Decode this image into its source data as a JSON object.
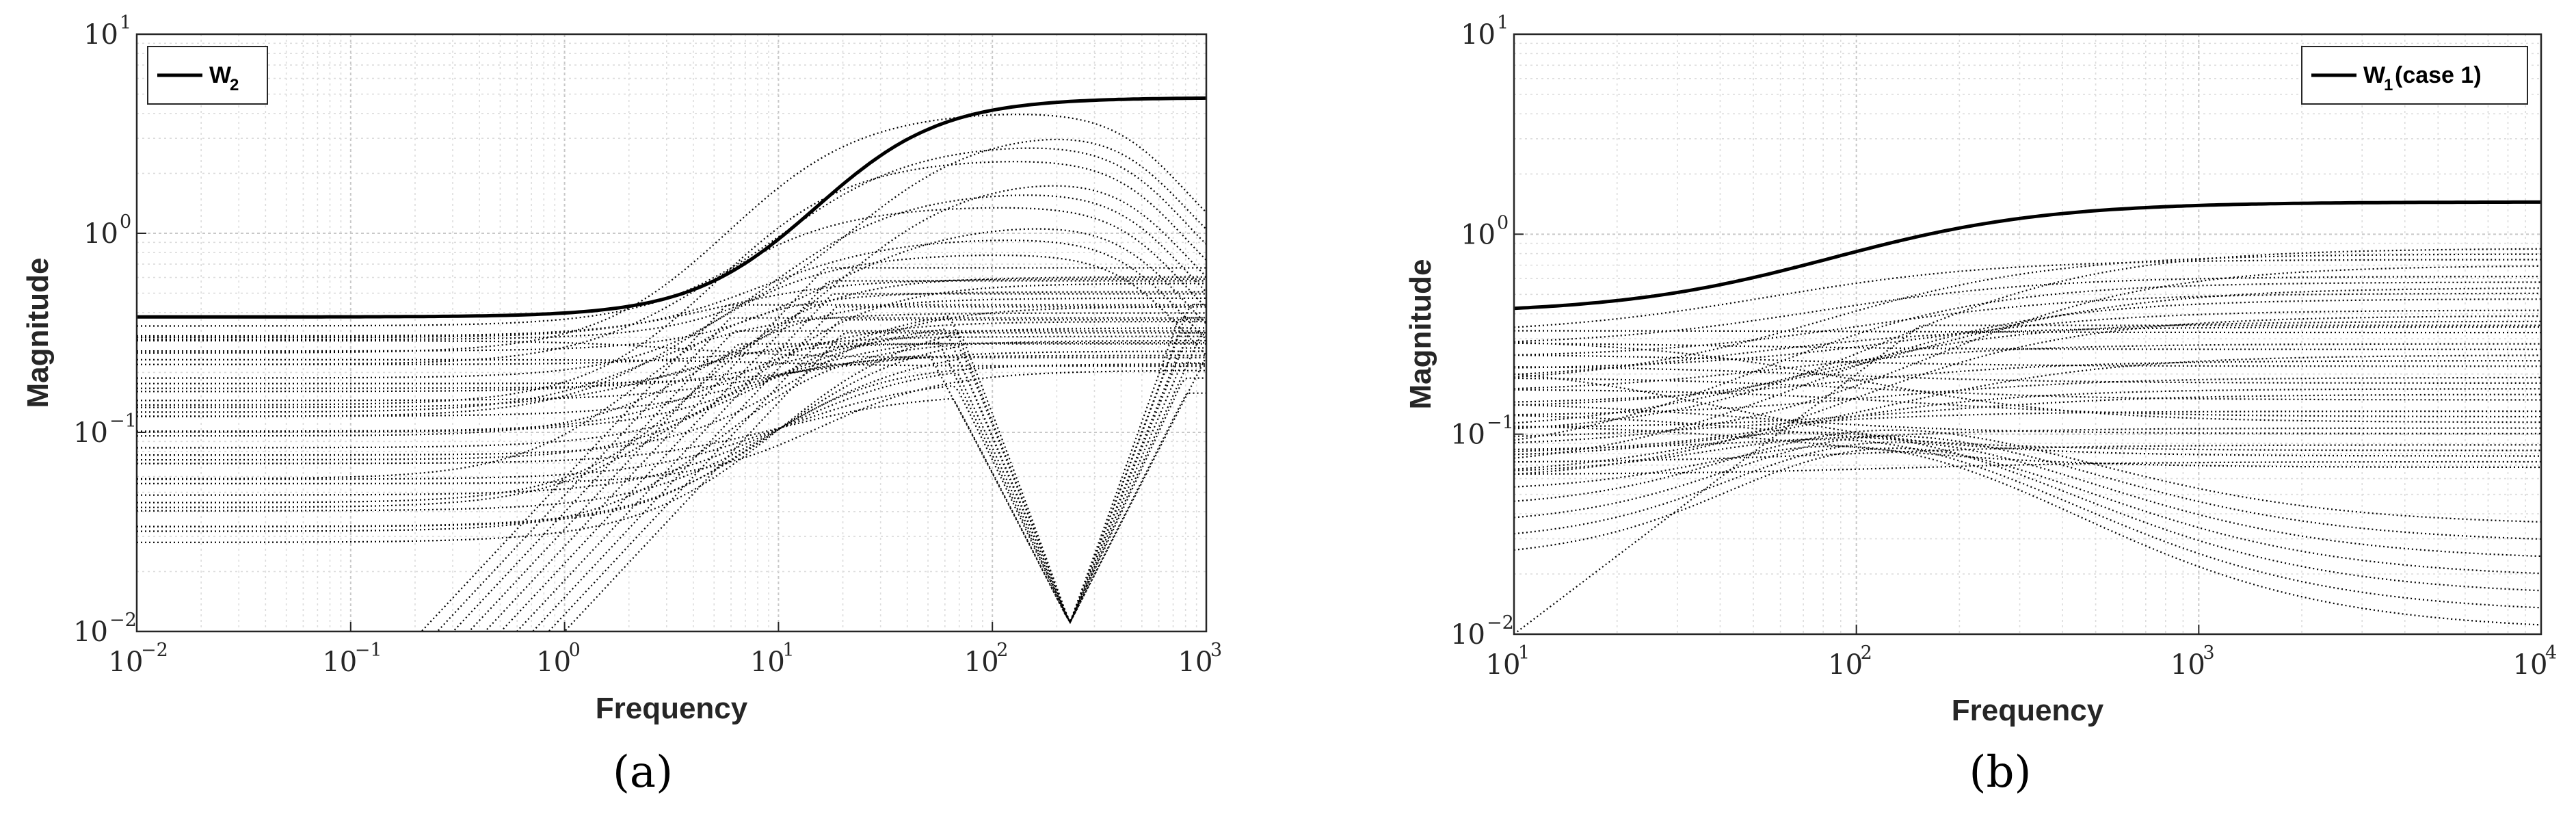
{
  "chart_data": [
    {
      "type": "line",
      "panel_label": "(a)",
      "xlabel": "Frequency",
      "ylabel": "Magnitude",
      "xscale": "log",
      "yscale": "log",
      "xlim": [
        0.01,
        1000
      ],
      "ylim": [
        0.01,
        10
      ],
      "x_ticks": [
        {
          "base": "10",
          "exp": "−2"
        },
        {
          "base": "10",
          "exp": "−1"
        },
        {
          "base": "10",
          "exp": "0"
        },
        {
          "base": "10",
          "exp": "1"
        },
        {
          "base": "10",
          "exp": "2"
        },
        {
          "base": "10",
          "exp": "3"
        }
      ],
      "y_ticks": [
        {
          "base": "10",
          "exp": "−2"
        },
        {
          "base": "10",
          "exp": "−1"
        },
        {
          "base": "10",
          "exp": "0"
        },
        {
          "base": "10",
          "exp": "1"
        }
      ],
      "grid": true,
      "legend": {
        "position": "top-left",
        "entry": {
          "base": "W",
          "sub": "2"
        }
      },
      "bound": {
        "style": "solid",
        "low_gain": 0.38,
        "high_gain": 4.8,
        "x_mid": 15
      },
      "dotted_family": {
        "style": "dotted",
        "count": 48,
        "low_gain_range": [
          0.027,
          0.36
        ],
        "plateau_range": [
          0.2,
          0.65
        ],
        "peaking_range": [
          0.8,
          4.5
        ],
        "notch_center": 230,
        "notch_min": 0.011,
        "rising_start_range": [
          0.2,
          1.0
        ]
      }
    },
    {
      "type": "line",
      "panel_label": "(b)",
      "xlabel": "Frequency",
      "ylabel": "Magnitude",
      "xscale": "log",
      "yscale": "log",
      "xlim": [
        10,
        10000
      ],
      "ylim": [
        0.01,
        10
      ],
      "x_ticks": [
        {
          "base": "10",
          "exp": "1"
        },
        {
          "base": "10",
          "exp": "2"
        },
        {
          "base": "10",
          "exp": "3"
        },
        {
          "base": "10",
          "exp": "4"
        }
      ],
      "y_ticks": [
        {
          "base": "10",
          "exp": "−2"
        },
        {
          "base": "10",
          "exp": "−1"
        },
        {
          "base": "10",
          "exp": "0"
        },
        {
          "base": "10",
          "exp": "1"
        }
      ],
      "grid": true,
      "legend": {
        "position": "top-right",
        "entry": {
          "base": "W",
          "sub": "1",
          "suffix": "(case 1)"
        }
      },
      "bound": {
        "style": "solid",
        "low_gain": 0.4,
        "high_gain": 1.45,
        "x_mid": 85
      },
      "dotted_family": {
        "style": "dotted",
        "count": 42,
        "start_range": [
          0.055,
          0.36
        ],
        "end_range": [
          0.06,
          0.85
        ],
        "falling_end_range": [
          0.01,
          0.04
        ],
        "origin_start": 0.01
      }
    }
  ]
}
